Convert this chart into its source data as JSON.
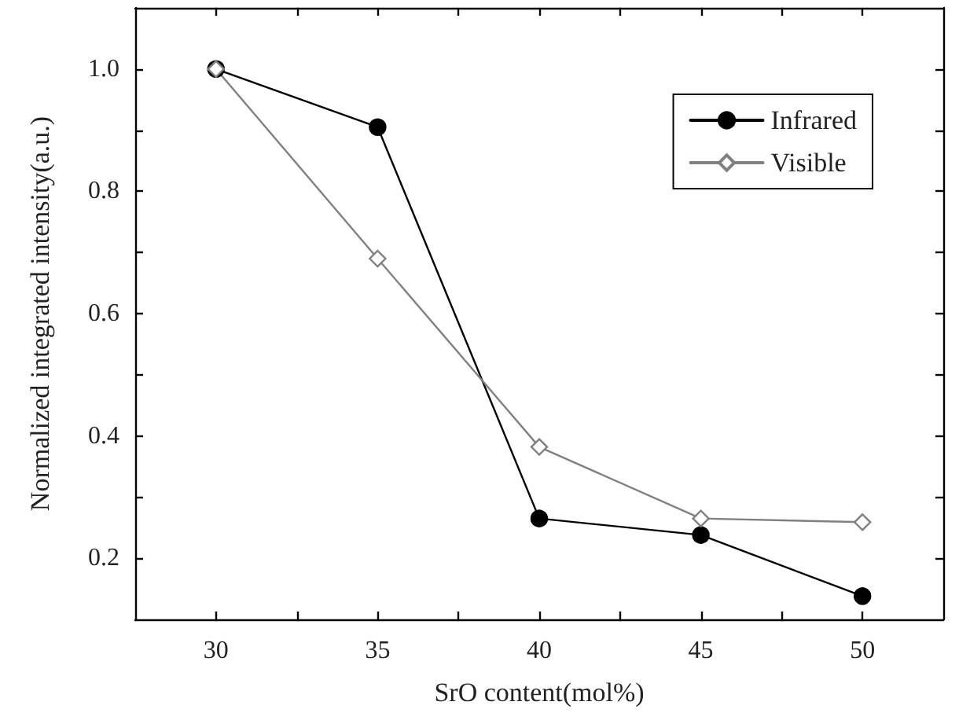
{
  "chart_data": {
    "type": "line",
    "xlabel": "SrO content(mol%)",
    "ylabel": "Normalized integrated intensity(a.u.)",
    "x": [
      30,
      35,
      40,
      45,
      50
    ],
    "series": [
      {
        "name": "Infrared",
        "color": "#000000",
        "marker": "circle",
        "values": [
          1.0,
          0.905,
          0.265,
          0.238,
          0.138
        ]
      },
      {
        "name": "Visible",
        "color": "#808080",
        "marker": "diamond",
        "values": [
          1.0,
          0.69,
          0.382,
          0.265,
          0.259
        ]
      }
    ],
    "xlim": [
      27.5,
      52.5
    ],
    "xticks": [
      30,
      {
        "value": 32.5,
        "label": null
      },
      35,
      {
        "value": 37.5,
        "label": null
      },
      40,
      {
        "value": 42.5,
        "label": null
      },
      45,
      {
        "value": 47.5,
        "label": null
      },
      50
    ],
    "ylim": [
      0.1,
      1.1
    ],
    "yticks": [
      {
        "value": 0.2,
        "label": "0.2"
      },
      {
        "value": 0.3,
        "label": null
      },
      {
        "value": 0.4,
        "label": "0.4"
      },
      {
        "value": 0.5,
        "label": null
      },
      {
        "value": 0.6,
        "label": "0.6"
      },
      {
        "value": 0.7,
        "label": null
      },
      {
        "value": 0.8,
        "label": "0.8"
      },
      {
        "value": 0.9,
        "label": null
      },
      {
        "value": 1.0,
        "label": "1.0"
      }
    ],
    "grid": false,
    "legend": "top right",
    "line_style": "solid"
  }
}
